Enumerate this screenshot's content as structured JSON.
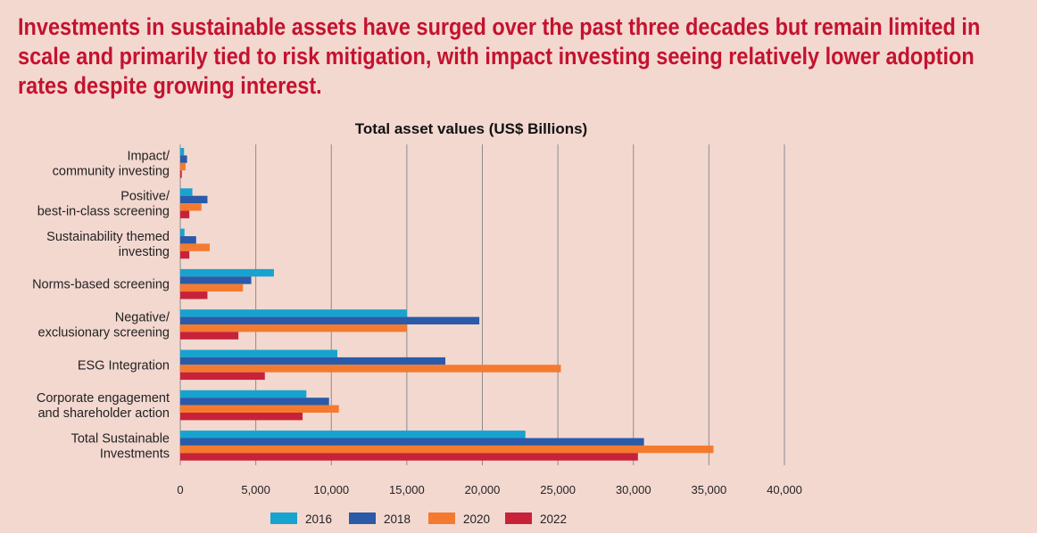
{
  "headline": "Investments in sustainable assets have surged over the past three decades but remain limited in scale and primarily tied to risk mitigation, with impact investing seeing relatively lower adoption rates despite growing interest.",
  "chart_data": {
    "type": "bar",
    "orientation": "horizontal",
    "title": "Total asset values (US$ Billions)",
    "xlabel": "",
    "ylabel": "",
    "xlim": [
      0,
      40000
    ],
    "ticks": [
      0,
      5000,
      10000,
      15000,
      20000,
      25000,
      30000,
      35000,
      40000
    ],
    "tick_labels": [
      "0",
      "5,000",
      "10,000",
      "15,000",
      "20,000",
      "25,000",
      "30,000",
      "35,000",
      "40,000"
    ],
    "grid": true,
    "legend_position": "bottom",
    "categories": [
      [
        "Impact/",
        "community investing"
      ],
      [
        "Positive/",
        "best-in-class screening"
      ],
      [
        "Sustainability themed",
        "investing"
      ],
      [
        "Norms-based screening"
      ],
      [
        "Negative/",
        "exclusionary screening"
      ],
      [
        "ESG Integration"
      ],
      [
        "Corporate engagement",
        "and shareholder action"
      ],
      [
        "Total Sustainable",
        "Investments"
      ]
    ],
    "series": [
      {
        "name": "2016",
        "color": "#17a3cf",
        "values": [
          250,
          800,
          280,
          6200,
          15000,
          10400,
          8350,
          22850
        ]
      },
      {
        "name": "2018",
        "color": "#2b5aa8",
        "values": [
          450,
          1800,
          1050,
          4700,
          19800,
          17550,
          9850,
          30700
        ]
      },
      {
        "name": "2020",
        "color": "#f47a2f",
        "values": [
          350,
          1400,
          1950,
          4150,
          15000,
          25200,
          10500,
          35300
        ]
      },
      {
        "name": "2022",
        "color": "#c8223a",
        "values": [
          100,
          600,
          600,
          1800,
          3850,
          5600,
          8100,
          30300
        ]
      }
    ]
  }
}
